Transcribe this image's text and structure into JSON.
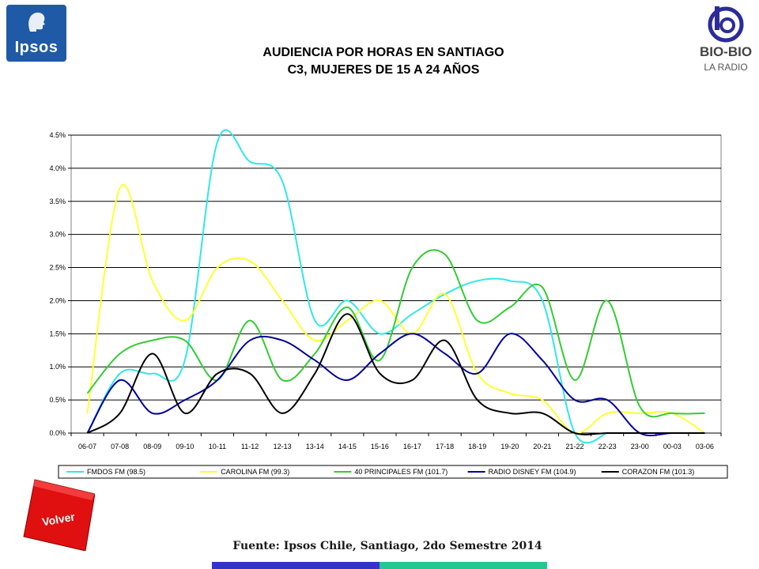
{
  "logos": {
    "left": {
      "text": "Ipsos",
      "icon": "ipsos-head-icon",
      "color": "#1f5aa6"
    },
    "right": {
      "text": "BIO-BIO",
      "subtext": "LA RADIO",
      "icon": "biobio-radio-icon"
    }
  },
  "title_line1": "AUDIENCIA POR HORAS EN SANTIAGO",
  "title_line2": "C3, MUJERES DE 15 A 24 AÑOS",
  "volver_label": "Volver",
  "source": "Fuente: Ipsos Chile, Santiago, 2do Semestre 2014",
  "footer_colors": [
    "#3333cc",
    "#21c88f"
  ],
  "chart_data": {
    "type": "line",
    "title": "",
    "xlabel": "",
    "ylabel": "",
    "ylim": [
      0,
      0.045
    ],
    "yticks": [
      "0.0%",
      "0.5%",
      "1.0%",
      "1.5%",
      "2.0%",
      "2.5%",
      "3.0%",
      "3.5%",
      "4.0%",
      "4.5%"
    ],
    "grid": true,
    "smooth": true,
    "legend_position": "bottom",
    "categories": [
      "06-07",
      "07-08",
      "08-09",
      "09-10",
      "10-11",
      "11-12",
      "12-13",
      "13-14",
      "14-15",
      "15-16",
      "16-17",
      "17-18",
      "18-19",
      "19-20",
      "20-21",
      "21-22",
      "22-23",
      "23-00",
      "00-03",
      "03-06"
    ],
    "series": [
      {
        "name": "FMDOS FM (98.5)",
        "color": "#33e6e6",
        "values": [
          0.0,
          0.009,
          0.009,
          0.011,
          0.044,
          0.041,
          0.038,
          0.017,
          0.02,
          0.015,
          0.018,
          0.021,
          0.023,
          0.023,
          0.02,
          0.0,
          0.0,
          null,
          null,
          null
        ]
      },
      {
        "name": "CAROLINA FM (99.3)",
        "color": "#ffff33",
        "values": [
          0.003,
          0.037,
          0.023,
          0.017,
          0.025,
          0.026,
          0.02,
          0.014,
          0.017,
          0.02,
          0.015,
          0.021,
          0.009,
          0.006,
          0.005,
          0.0,
          0.003,
          0.003,
          0.003,
          0.0
        ]
      },
      {
        "name": "40 PRINCIPALES FM (101.7)",
        "color": "#33cc33",
        "values": [
          0.006,
          0.012,
          0.014,
          0.014,
          0.008,
          0.017,
          0.008,
          0.012,
          0.019,
          0.011,
          0.025,
          0.027,
          0.017,
          0.019,
          0.022,
          0.008,
          0.02,
          0.004,
          0.003,
          0.003
        ]
      },
      {
        "name": "RADIO DISNEY FM (104.9)",
        "color": "#000099",
        "values": [
          0.0,
          0.008,
          0.003,
          0.005,
          0.008,
          0.014,
          0.014,
          0.011,
          0.008,
          0.012,
          0.015,
          0.012,
          0.009,
          0.015,
          0.011,
          0.005,
          0.005,
          0.0,
          0.0,
          0.0
        ]
      },
      {
        "name": "CORAZON FM (101.3)",
        "color": "#000000",
        "values": [
          0.0,
          0.003,
          0.012,
          0.003,
          0.009,
          0.009,
          0.003,
          0.009,
          0.018,
          0.009,
          0.008,
          0.014,
          0.005,
          0.003,
          0.003,
          0.0,
          0.0,
          0.0,
          0.0,
          0.0
        ]
      }
    ]
  }
}
